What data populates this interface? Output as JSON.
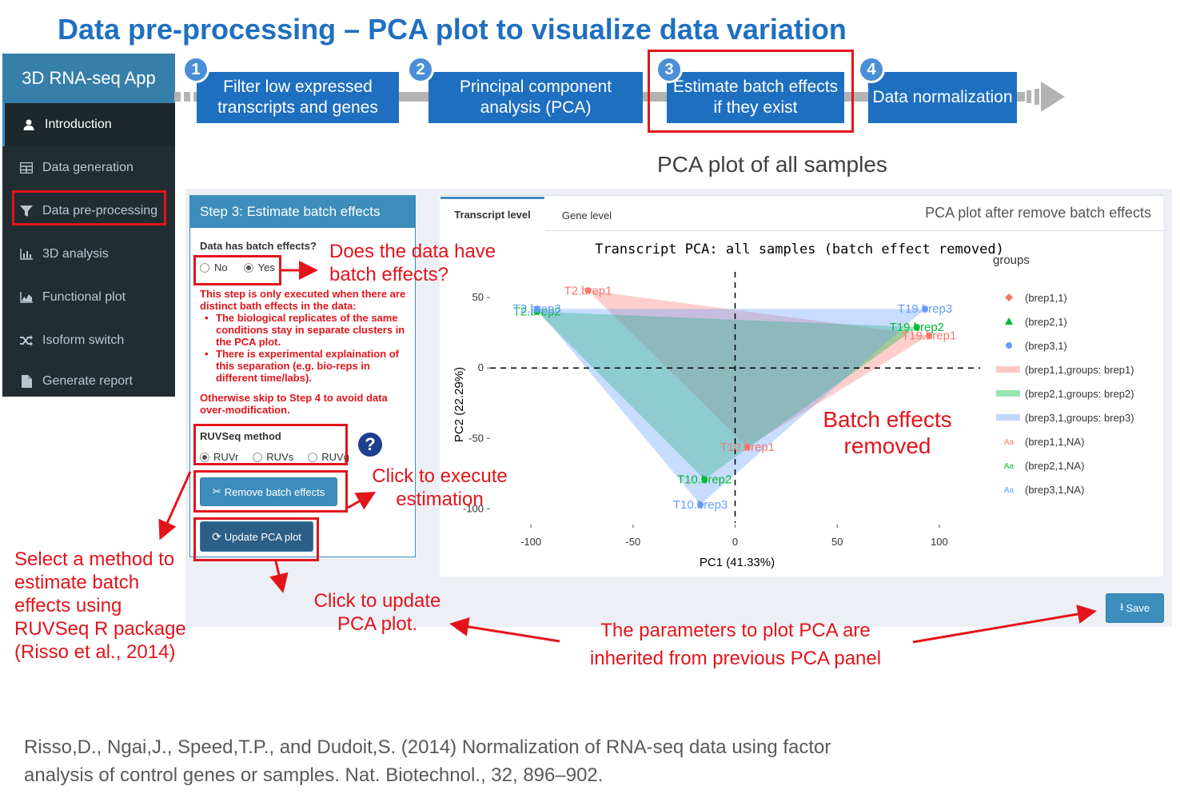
{
  "slide_title": "Data pre-processing – PCA plot to visualize data variation",
  "sidebar": {
    "app_name": "3D RNA-seq App",
    "items": [
      {
        "label": "Introduction",
        "icon": "user-icon"
      },
      {
        "label": "Data generation",
        "icon": "table-icon"
      },
      {
        "label": "Data pre-processing",
        "icon": "filter-icon"
      },
      {
        "label": "3D analysis",
        "icon": "bar-chart-icon"
      },
      {
        "label": "Functional plot",
        "icon": "area-chart-icon"
      },
      {
        "label": "Isoform switch",
        "icon": "shuffle-icon"
      },
      {
        "label": "Generate report",
        "icon": "file-icon"
      }
    ]
  },
  "workflow": [
    {
      "num": "1",
      "label": "Filter low expressed transcripts and genes"
    },
    {
      "num": "2",
      "label": "Principal component analysis (PCA)"
    },
    {
      "num": "3",
      "label": "Estimate batch effects if they exist"
    },
    {
      "num": "4",
      "label": "Data normalization"
    }
  ],
  "pca_all_label": "PCA plot of all samples",
  "step_panel": {
    "header": "Step 3: Estimate batch effects",
    "batch_question": "Data has batch effects?",
    "batch_options": [
      "No",
      "Yes"
    ],
    "batch_selected": "Yes",
    "note_intro": "This step is only executed when there are distinct bath effects in the data:",
    "note_bullets": [
      "The biological replicates of the same conditions stay in separate clusters in the PCA plot.",
      "There is experimental explaination of this separation (e.g. bio-reps in different time/labs)."
    ],
    "note_skip": "Otherwise skip to Step 4 to avoid data over-modification.",
    "method_label": "RUVSeq method",
    "method_options": [
      "RUVr",
      "RUVs",
      "RUVg"
    ],
    "method_selected": "RUVr",
    "help_glyph": "?",
    "remove_button": "Remove batch effects",
    "update_button": "Update PCA plot"
  },
  "plot_panel": {
    "tabs": [
      "Transcript level",
      "Gene level"
    ],
    "active_tab": "Transcript level",
    "panel_title": "PCA plot after remove batch effects",
    "save_button": "Save"
  },
  "annotations": {
    "batch_question": "Does the data have batch effects?",
    "batch_removed": "Batch effects removed",
    "click_execute": "Click to execute estimation",
    "select_method": "Select a method to estimate batch effects using RUVSeq R package (Risso et al., 2014)",
    "click_update": "Click to update PCA plot.",
    "parameters_inherited": "The parameters to plot PCA are inherited from previous PCA panel"
  },
  "reference": "Risso,D., Ngai,J., Speed,T.P., and Dudoit,S. (2014) Normalization of RNA-seq data using factor analysis of control genes or samples. Nat. Biotechnol., 32, 896–902.",
  "colors": {
    "brep1": "#f8766d",
    "brep2": "#00ba38",
    "brep3": "#619cff",
    "accent": "#1f6fc0",
    "annotation_red": "#e3141b"
  },
  "chart_data": {
    "type": "scatter",
    "title": "Transcript PCA: all samples (batch effect removed)",
    "xlabel": "PC1 (41.33%)",
    "ylabel": "PC2 (22.29%)",
    "xlim": [
      -120,
      120
    ],
    "ylim": [
      -110,
      58
    ],
    "xticks": [
      -100,
      -50,
      0,
      50,
      100
    ],
    "yticks": [
      50,
      0,
      -50,
      -100
    ],
    "legend_title": "groups",
    "legend": [
      {
        "label": "(brep1,1)",
        "marker": "diamond",
        "series": "brep1"
      },
      {
        "label": "(brep2,1)",
        "marker": "triangle",
        "series": "brep2"
      },
      {
        "label": "(brep3,1)",
        "marker": "circle",
        "series": "brep3"
      },
      {
        "label": "(brep1,1,groups: brep1)",
        "marker": "band",
        "series": "brep1"
      },
      {
        "label": "(brep2,1,groups: brep2)",
        "marker": "band",
        "series": "brep2"
      },
      {
        "label": "(brep3,1,groups: brep3)",
        "marker": "band",
        "series": "brep3"
      },
      {
        "label": "(brep1,1,NA)",
        "marker": "text",
        "series": "brep1"
      },
      {
        "label": "(brep2,1,NA)",
        "marker": "text",
        "series": "brep2"
      },
      {
        "label": "(brep3,1,NA)",
        "marker": "text",
        "series": "brep3"
      }
    ],
    "series": [
      {
        "name": "brep1",
        "points": [
          {
            "label": "T2.brep1",
            "x": -72,
            "y": 55
          },
          {
            "label": "T19.brep1",
            "x": 95,
            "y": 23
          },
          {
            "label": "T10.brep1",
            "x": 6,
            "y": -56
          }
        ]
      },
      {
        "name": "brep2",
        "points": [
          {
            "label": "T2.brep2",
            "x": -97,
            "y": 40
          },
          {
            "label": "T19.brep2",
            "x": 89,
            "y": 29
          },
          {
            "label": "T10.brep2",
            "x": -15,
            "y": -79
          }
        ]
      },
      {
        "name": "brep3",
        "points": [
          {
            "label": "T2.brep3",
            "x": -97,
            "y": 42
          },
          {
            "label": "T19.brep3",
            "x": 93,
            "y": 42
          },
          {
            "label": "T10.brep3",
            "x": -17,
            "y": -97
          }
        ]
      }
    ]
  }
}
